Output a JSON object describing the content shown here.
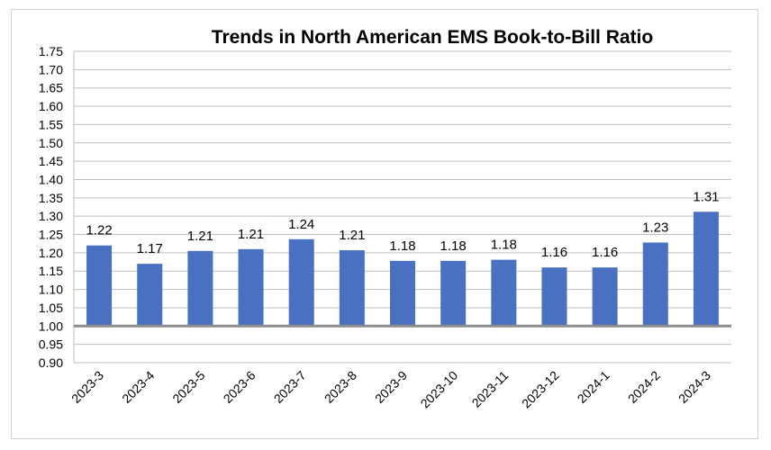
{
  "chart_data": {
    "type": "bar",
    "title": "Trends in North American EMS Book-to-Bill Ratio",
    "xlabel": "",
    "ylabel": "",
    "categories": [
      "2023-3",
      "2023-4",
      "2023-5",
      "2023-6",
      "2023-7",
      "2023-8",
      "2023-9",
      "2023-10",
      "2023-11",
      "2023-12",
      "2024-1",
      "2024-2",
      "2024-3"
    ],
    "values": [
      1.22,
      1.17,
      1.205,
      1.21,
      1.237,
      1.207,
      1.178,
      1.178,
      1.181,
      1.16,
      1.16,
      1.228,
      1.312
    ],
    "data_labels": [
      "1.22",
      "1.17",
      "1.21",
      "1.21",
      "1.24",
      "1.21",
      "1.18",
      "1.18",
      "1.18",
      "1.16",
      "1.16",
      "1.23",
      "1.31"
    ],
    "ylim": [
      0.9,
      1.75
    ],
    "y_ticks": [
      "0.90",
      "0.95",
      "1.00",
      "1.05",
      "1.10",
      "1.15",
      "1.20",
      "1.25",
      "1.30",
      "1.35",
      "1.40",
      "1.45",
      "1.50",
      "1.55",
      "1.60",
      "1.65",
      "1.70",
      "1.75"
    ],
    "baseline": 1.0,
    "grid": true,
    "legend": "none",
    "colors": {
      "bar": "#4a70c2",
      "grid": "#bfbfbf",
      "baseline": "#8c8c8c"
    }
  }
}
